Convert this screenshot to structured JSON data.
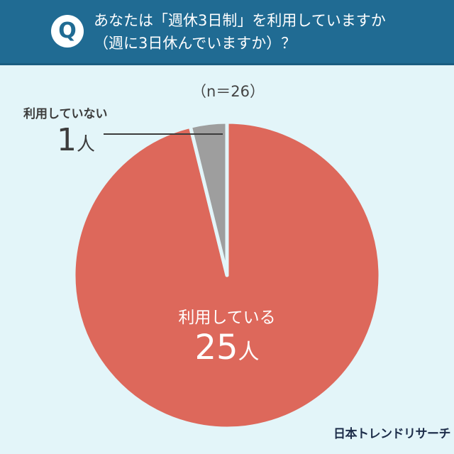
{
  "header": {
    "q_badge": "Q",
    "question_line1": "あなたは「週休3日制」を利用していますか",
    "question_line2": "（週に3日休んでいますか）？"
  },
  "sample_size": "（n＝26）",
  "labels": {
    "not_using": "利用していない",
    "not_using_count": "1",
    "using": "利用している",
    "using_count": "25",
    "unit": "人"
  },
  "brand": "日本トレンドリサーチ",
  "colors": {
    "header_bg": "#206b93",
    "background": "#e3f5f9",
    "using": "#dd685b",
    "not_using": "#9e9e9e"
  },
  "chart_data": {
    "type": "pie",
    "title": "あなたは「週休3日制」を利用していますか（週に3日休んでいますか）？",
    "n": 26,
    "categories": [
      "利用している",
      "利用していない"
    ],
    "values": [
      25,
      1
    ],
    "colors": [
      "#dd685b",
      "#9e9e9e"
    ],
    "start_angle": "12 o'clock",
    "direction": "clockwise"
  }
}
